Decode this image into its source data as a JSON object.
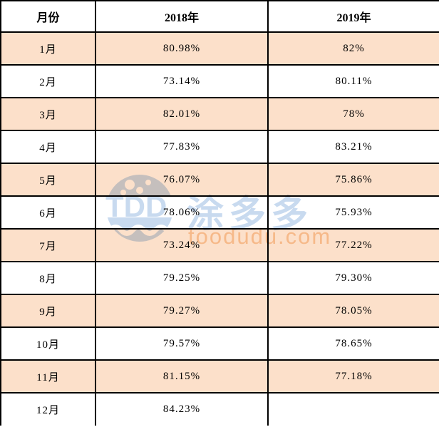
{
  "table": {
    "headers": [
      "月份",
      "2018年",
      "2019年"
    ],
    "rows": [
      {
        "month": "1月",
        "y2018": "80.98%",
        "y2019": "82%"
      },
      {
        "month": "2月",
        "y2018": "73.14%",
        "y2019": "80.11%"
      },
      {
        "month": "3月",
        "y2018": "82.01%",
        "y2019": "78%"
      },
      {
        "month": "4月",
        "y2018": "77.83%",
        "y2019": "83.21%"
      },
      {
        "month": "5月",
        "y2018": "76.07%",
        "y2019": "75.86%"
      },
      {
        "month": "6月",
        "y2018": "78.06%",
        "y2019": "75.93%"
      },
      {
        "month": "7月",
        "y2018": "73.24%",
        "y2019": "77.22%"
      },
      {
        "month": "8月",
        "y2018": "79.25%",
        "y2019": "79.30%"
      },
      {
        "month": "9月",
        "y2018": "79.27%",
        "y2019": "78.05%"
      },
      {
        "month": "10月",
        "y2018": "79.57%",
        "y2019": "78.65%"
      },
      {
        "month": "11月",
        "y2018": "81.15%",
        "y2019": "77.18%"
      },
      {
        "month": "12月",
        "y2018": "84.23%",
        "y2019": ""
      }
    ]
  },
  "watermark": {
    "logo": "TDD",
    "brand": "涂多多",
    "domain": "toodudu.com"
  },
  "colors": {
    "row_highlight": "#fce0ca",
    "border": "#000000",
    "watermark_blue": "#c3d7ee",
    "watermark_orange": "#f9cfa6"
  }
}
